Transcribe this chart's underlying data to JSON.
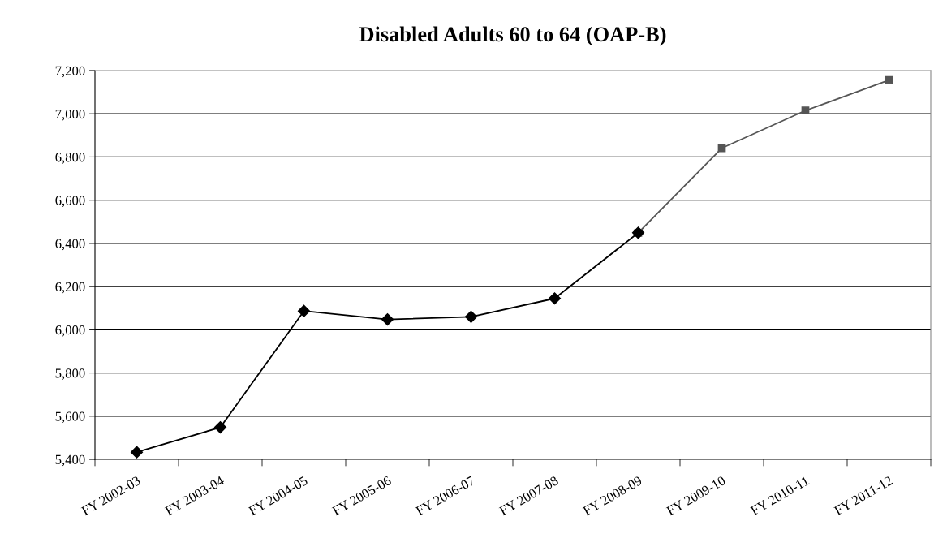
{
  "chart_data": {
    "type": "line",
    "title": "Disabled Adults 60 to 64 (OAP-B)",
    "categories": [
      "FY 2002-03",
      "FY 2003-04",
      "FY 2004-05",
      "FY 2005-06",
      "FY 2006-07",
      "FY 2007-08",
      "FY 2008-09",
      "FY 2009-10",
      "FY 2010-11",
      "FY 2011-12"
    ],
    "series": [
      {
        "color": "#555555",
        "marker": "square",
        "values": [
          null,
          null,
          null,
          null,
          null,
          null,
          6449,
          6841,
          7015,
          7156
        ]
      },
      {
        "color": "#000000",
        "marker": "diamond",
        "values": [
          5433,
          5548,
          6087,
          6048,
          6060,
          6145,
          6449,
          null,
          null,
          null
        ]
      }
    ],
    "ylim": [
      5400,
      7200
    ],
    "yticks": [
      {
        "value": 5400,
        "label": "5,400"
      },
      {
        "value": 5600,
        "label": "5,600"
      },
      {
        "value": 5800,
        "label": "5,800"
      },
      {
        "value": 6000,
        "label": "6,000"
      },
      {
        "value": 6200,
        "label": "6,200"
      },
      {
        "value": 6400,
        "label": "6,400"
      },
      {
        "value": 6600,
        "label": "6,600"
      },
      {
        "value": 6800,
        "label": "6,800"
      },
      {
        "value": 7000,
        "label": "7,000"
      },
      {
        "value": 7200,
        "label": "7,200"
      }
    ],
    "grid": "y",
    "line_style": "solid",
    "legend": false
  }
}
